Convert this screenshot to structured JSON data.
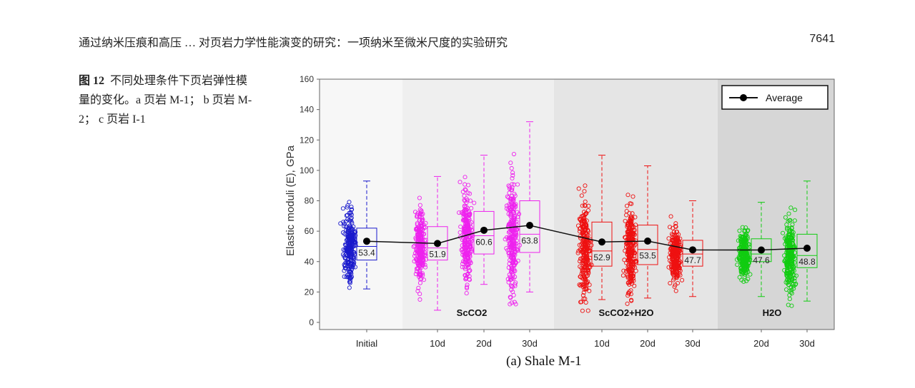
{
  "header": {
    "title": "通过纳米压痕和高压 … 对页岩力学性能演变的研究：一项纳米至微米尺度的实验研究",
    "page_number": "7641"
  },
  "caption": {
    "label": "图 12",
    "text": "不同处理条件下页岩弹性模量的变化。a 页岩 M-1； b 页岩 M-2； c 页岩 I-1"
  },
  "chart_data": {
    "type": "box-scatter",
    "title": "(a) Shale M-1",
    "ylabel": "Elastic moduli (E), GPa",
    "ylim": [
      0,
      160
    ],
    "yticks": [
      0,
      20,
      40,
      60,
      80,
      100,
      120,
      140,
      160
    ],
    "grid": false,
    "legend": {
      "entries": [
        "Average"
      ],
      "placement": "top-right"
    },
    "groups": [
      {
        "label": "",
        "color": "#f7f7f7"
      },
      {
        "label": "ScCO2",
        "color": "#efefef"
      },
      {
        "label": "ScCO2+H2O",
        "color": "#e5e5e5"
      },
      {
        "label": "H2O",
        "color": "#d6d6d6"
      }
    ],
    "categories": [
      "Initial",
      "10d",
      "20d",
      "30d",
      "10d",
      "20d",
      "30d",
      "20d",
      "30d"
    ],
    "series": [
      {
        "category": "Initial",
        "group": 0,
        "color": "#1a1acc",
        "whisker": [
          22,
          93
        ],
        "box": [
          41,
          62
        ],
        "median": 50,
        "mean": 53.4
      },
      {
        "category": "10d",
        "group": 1,
        "color": "#ee22ee",
        "whisker": [
          8,
          96
        ],
        "box": [
          41,
          63
        ],
        "median": 49,
        "mean": 51.9
      },
      {
        "category": "20d",
        "group": 1,
        "color": "#ee22ee",
        "whisker": [
          25,
          110
        ],
        "box": [
          45,
          73
        ],
        "median": 57,
        "mean": 60.6
      },
      {
        "category": "30d",
        "group": 1,
        "color": "#ee22ee",
        "whisker": [
          20,
          132
        ],
        "box": [
          46,
          80
        ],
        "median": 58,
        "mean": 63.8
      },
      {
        "category": "10d",
        "group": 2,
        "color": "#ee1111",
        "whisker": [
          15,
          110
        ],
        "box": [
          37,
          66
        ],
        "median": 47,
        "mean": 52.9
      },
      {
        "category": "20d",
        "group": 2,
        "color": "#ee1111",
        "whisker": [
          16,
          103
        ],
        "box": [
          38,
          64
        ],
        "median": 48,
        "mean": 53.5
      },
      {
        "category": "30d",
        "group": 2,
        "color": "#ee1111",
        "whisker": [
          17,
          80
        ],
        "box": [
          37,
          54
        ],
        "median": 45,
        "mean": 47.7
      },
      {
        "category": "20d",
        "group": 3,
        "color": "#11cc11",
        "whisker": [
          17,
          79
        ],
        "box": [
          40,
          55
        ],
        "median": 45,
        "mean": 47.6
      },
      {
        "category": "30d",
        "group": 3,
        "color": "#11cc11",
        "whisker": [
          14,
          93
        ],
        "box": [
          36,
          58
        ],
        "median": 44,
        "mean": 48.8
      }
    ]
  }
}
